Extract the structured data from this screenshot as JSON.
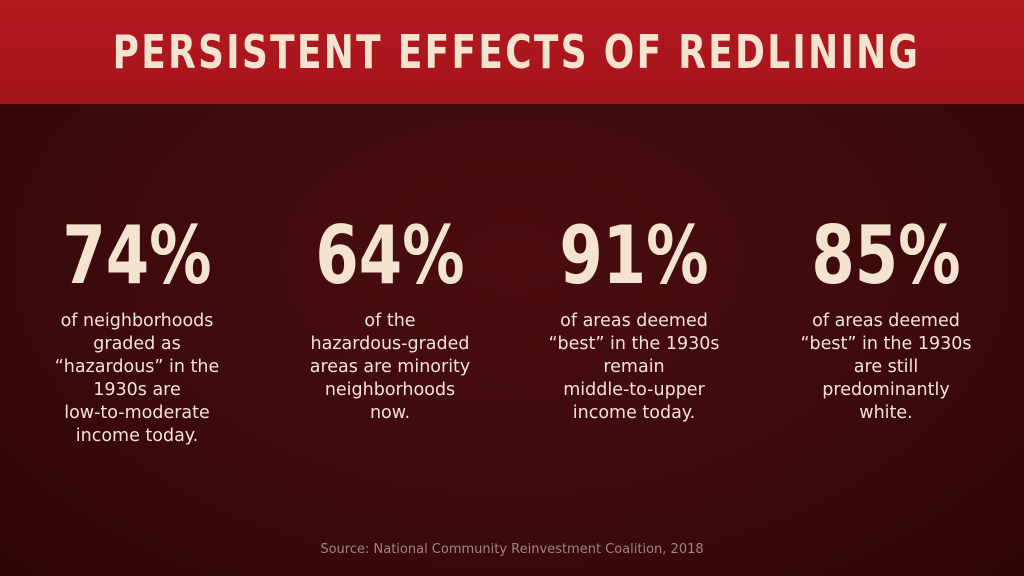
{
  "title": "PERSISTENT EFFECTS OF REDLINING",
  "stats": [
    {
      "value": "74%",
      "description": "of neighborhoods\ngraded as\n“hazardous” in the\n1930s are\nlow-to-moderate\nincome today."
    },
    {
      "value": "64%",
      "description": "of the\nhazardous-graded\nareas are minority\nneighborhoods\nnow."
    },
    {
      "value": "91%",
      "description": "of areas deemed\n“best” in the 1930s\nremain\nmiddle-to-upper\nincome today."
    },
    {
      "value": "85%",
      "description": "of areas deemed\n“best” in the 1930s\nare still\npredominantly\nwhite."
    }
  ],
  "source": "Source: National Community Reinvestment Coalition, 2018",
  "colors": {
    "header_red": "#b3191f",
    "background_maroon": "#3e0a0c",
    "text_cream": "#f3e3cf",
    "source_text": "#a58478"
  }
}
